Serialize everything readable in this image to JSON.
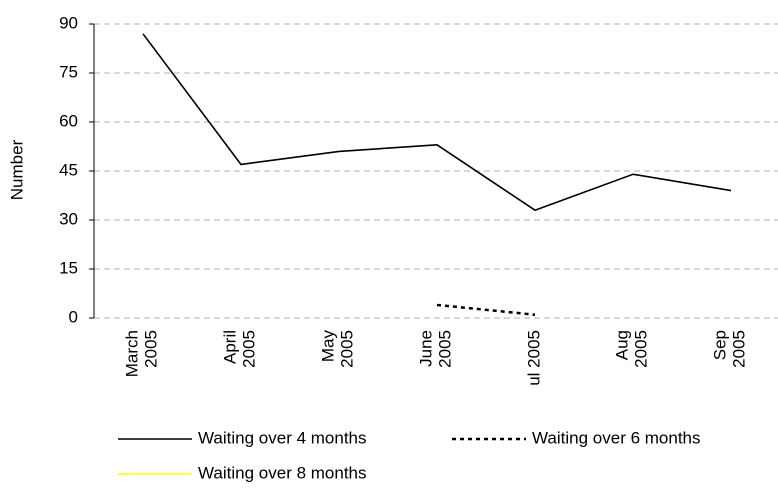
{
  "chart_data": {
    "type": "line",
    "y_label": "Number",
    "categories": [
      "March 2005",
      "April 2005",
      "May 2005",
      "June 2005",
      "ul 2005",
      "Aug 2005",
      "Sep 2005"
    ],
    "series": [
      {
        "name": "Waiting over 4 months",
        "color": "#000000",
        "dash": false,
        "values": [
          87,
          47,
          51,
          53,
          33,
          44,
          39
        ]
      },
      {
        "name": "Waiting over 6 months",
        "color": "#000000",
        "dash": true,
        "values": [
          null,
          null,
          null,
          4,
          1,
          null,
          null
        ]
      },
      {
        "name": "Waiting over 8 months",
        "color": "#ffff00",
        "dash": false,
        "values": [
          null,
          null,
          null,
          null,
          null,
          null,
          null
        ]
      }
    ],
    "ylim": [
      0,
      90
    ],
    "yticks": [
      0,
      15,
      30,
      45,
      60,
      75,
      90
    ],
    "grid": true
  }
}
